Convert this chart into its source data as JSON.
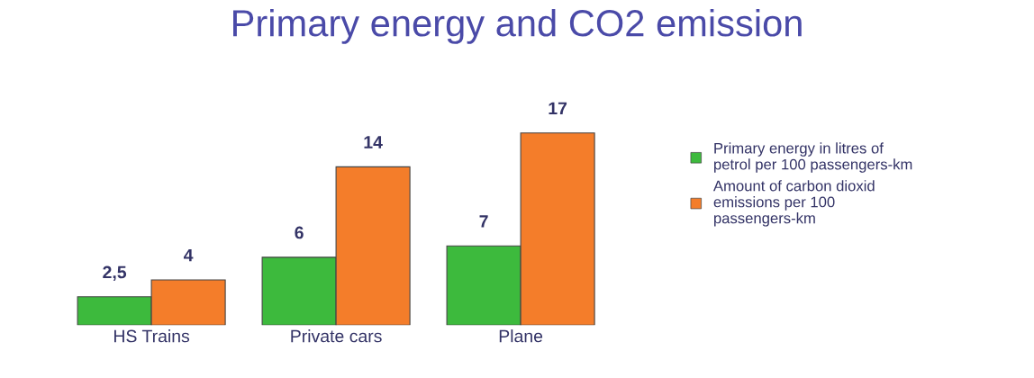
{
  "chart_data": {
    "type": "bar",
    "title": "Primary energy and CO2 emission",
    "categories": [
      "HS Trains",
      "Private cars",
      "Plane"
    ],
    "series": [
      {
        "name": "Primary energy in litres of petrol per 100 passengers-km",
        "color": "#3dba3d",
        "values": [
          2.5,
          6,
          7
        ],
        "value_labels": [
          "2,5",
          "6",
          "7"
        ]
      },
      {
        "name": "Amount of carbon dioxid emissions per 100 passengers-km",
        "color": "#f47d2a",
        "values": [
          4,
          14,
          17
        ],
        "value_labels": [
          "4",
          "14",
          "17"
        ]
      }
    ],
    "legend": "right",
    "grid": false
  }
}
